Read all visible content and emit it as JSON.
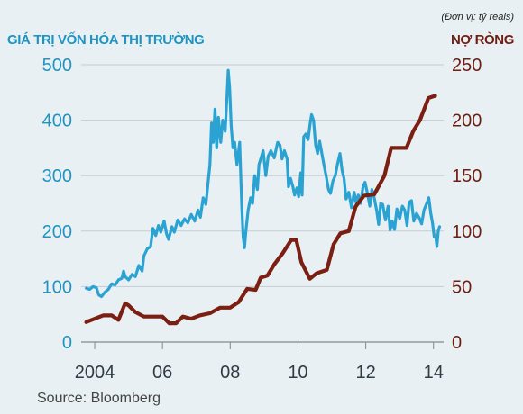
{
  "header": {
    "unit_note": "(Đơn vị: tỷ reais)",
    "left_title": "GIÁ TRỊ VỐN HÓA THỊ TRƯỜNG",
    "right_title": "NỢ RÒNG"
  },
  "source": "Source: Bloomberg",
  "colors": {
    "market_cap": "#2aa3d3",
    "net_debt": "#7b1f12",
    "left_axis_text": "#1f93c1",
    "right_axis_text": "#6e1e12",
    "axis_text": "#2f3b45",
    "grid": "#c4cdd2",
    "background": "#e9f0f3"
  },
  "chart_data": {
    "type": "line",
    "grid": true,
    "x_range": [
      2003.6,
      2014.3
    ],
    "x_ticks": [
      {
        "value": 2004,
        "label": "2004"
      },
      {
        "value": 2006,
        "label": "06"
      },
      {
        "value": 2008,
        "label": "08"
      },
      {
        "value": 2010,
        "label": "10"
      },
      {
        "value": 2012,
        "label": "12"
      },
      {
        "value": 2014,
        "label": "14"
      }
    ],
    "y_left": {
      "range": [
        0,
        500
      ],
      "ticks": [
        0,
        100,
        200,
        300,
        400,
        500
      ]
    },
    "y_right": {
      "range": [
        0,
        250
      ],
      "ticks": [
        0,
        50,
        100,
        150,
        200,
        250
      ]
    },
    "series": [
      {
        "name": "GIÁ TRỊ VỐN HÓA THỊ TRƯỜNG",
        "axis": "left",
        "points": [
          [
            2003.75,
            97
          ],
          [
            2003.85,
            95
          ],
          [
            2003.95,
            100
          ],
          [
            2004.05,
            98
          ],
          [
            2004.12,
            85
          ],
          [
            2004.2,
            82
          ],
          [
            2004.3,
            90
          ],
          [
            2004.4,
            95
          ],
          [
            2004.5,
            105
          ],
          [
            2004.6,
            103
          ],
          [
            2004.7,
            112
          ],
          [
            2004.8,
            115
          ],
          [
            2004.85,
            128
          ],
          [
            2004.9,
            118
          ],
          [
            2005.0,
            112
          ],
          [
            2005.1,
            122
          ],
          [
            2005.2,
            118
          ],
          [
            2005.3,
            138
          ],
          [
            2005.4,
            128
          ],
          [
            2005.45,
            155
          ],
          [
            2005.55,
            168
          ],
          [
            2005.65,
            172
          ],
          [
            2005.72,
            205
          ],
          [
            2005.8,
            192
          ],
          [
            2005.88,
            210
          ],
          [
            2005.95,
            198
          ],
          [
            2006.05,
            218
          ],
          [
            2006.12,
            195
          ],
          [
            2006.18,
            185
          ],
          [
            2006.28,
            208
          ],
          [
            2006.35,
            198
          ],
          [
            2006.45,
            220
          ],
          [
            2006.55,
            210
          ],
          [
            2006.65,
            222
          ],
          [
            2006.75,
            215
          ],
          [
            2006.85,
            230
          ],
          [
            2006.95,
            218
          ],
          [
            2007.05,
            238
          ],
          [
            2007.12,
            225
          ],
          [
            2007.2,
            260
          ],
          [
            2007.28,
            248
          ],
          [
            2007.35,
            290
          ],
          [
            2007.4,
            320
          ],
          [
            2007.45,
            395
          ],
          [
            2007.5,
            360
          ],
          [
            2007.55,
            420
          ],
          [
            2007.6,
            350
          ],
          [
            2007.65,
            405
          ],
          [
            2007.72,
            360
          ],
          [
            2007.78,
            400
          ],
          [
            2007.85,
            380
          ],
          [
            2007.9,
            440
          ],
          [
            2007.94,
            490
          ],
          [
            2007.98,
            460
          ],
          [
            2008.03,
            390
          ],
          [
            2008.08,
            350
          ],
          [
            2008.13,
            360
          ],
          [
            2008.2,
            320
          ],
          [
            2008.28,
            360
          ],
          [
            2008.34,
            245
          ],
          [
            2008.38,
            190
          ],
          [
            2008.42,
            170
          ],
          [
            2008.47,
            205
          ],
          [
            2008.53,
            238
          ],
          [
            2008.6,
            260
          ],
          [
            2008.66,
            250
          ],
          [
            2008.72,
            300
          ],
          [
            2008.8,
            275
          ],
          [
            2008.85,
            320
          ],
          [
            2008.9,
            330
          ],
          [
            2008.97,
            345
          ],
          [
            2009.05,
            300
          ],
          [
            2009.12,
            335
          ],
          [
            2009.2,
            345
          ],
          [
            2009.3,
            332
          ],
          [
            2009.4,
            360
          ],
          [
            2009.47,
            355
          ],
          [
            2009.53,
            330
          ],
          [
            2009.6,
            345
          ],
          [
            2009.68,
            330
          ],
          [
            2009.72,
            280
          ],
          [
            2009.78,
            295
          ],
          [
            2009.85,
            280
          ],
          [
            2009.9,
            265
          ],
          [
            2009.97,
            278
          ],
          [
            2010.02,
            262
          ],
          [
            2010.08,
            305
          ],
          [
            2010.12,
            265
          ],
          [
            2010.17,
            370
          ],
          [
            2010.23,
            375
          ],
          [
            2010.3,
            365
          ],
          [
            2010.36,
            395
          ],
          [
            2010.4,
            410
          ],
          [
            2010.46,
            400
          ],
          [
            2010.52,
            355
          ],
          [
            2010.58,
            340
          ],
          [
            2010.64,
            362
          ],
          [
            2010.7,
            342
          ],
          [
            2010.77,
            318
          ],
          [
            2010.83,
            300
          ],
          [
            2010.9,
            275
          ],
          [
            2010.96,
            268
          ],
          [
            2011.03,
            290
          ],
          [
            2011.1,
            300
          ],
          [
            2011.17,
            322
          ],
          [
            2011.24,
            340
          ],
          [
            2011.3,
            310
          ],
          [
            2011.36,
            295
          ],
          [
            2011.42,
            258
          ],
          [
            2011.5,
            270
          ],
          [
            2011.58,
            242
          ],
          [
            2011.66,
            270
          ],
          [
            2011.72,
            250
          ],
          [
            2011.78,
            265
          ],
          [
            2011.85,
            250
          ],
          [
            2011.92,
            280
          ],
          [
            2011.98,
            288
          ],
          [
            2012.05,
            268
          ],
          [
            2012.12,
            245
          ],
          [
            2012.18,
            275
          ],
          [
            2012.25,
            260
          ],
          [
            2012.32,
            238
          ],
          [
            2012.38,
            212
          ],
          [
            2012.44,
            250
          ],
          [
            2012.5,
            248
          ],
          [
            2012.58,
            220
          ],
          [
            2012.66,
            245
          ],
          [
            2012.72,
            202
          ],
          [
            2012.78,
            218
          ],
          [
            2012.85,
            203
          ],
          [
            2012.92,
            240
          ],
          [
            2013.0,
            222
          ],
          [
            2013.08,
            245
          ],
          [
            2013.15,
            238
          ],
          [
            2013.22,
            210
          ],
          [
            2013.28,
            252
          ],
          [
            2013.35,
            255
          ],
          [
            2013.42,
            218
          ],
          [
            2013.5,
            232
          ],
          [
            2013.58,
            224
          ],
          [
            2013.65,
            213
          ],
          [
            2013.72,
            238
          ],
          [
            2013.8,
            250
          ],
          [
            2013.86,
            260
          ],
          [
            2013.92,
            232
          ],
          [
            2013.97,
            215
          ],
          [
            2014.02,
            190
          ],
          [
            2014.07,
            188
          ],
          [
            2014.1,
            172
          ],
          [
            2014.14,
            200
          ],
          [
            2014.18,
            208
          ]
        ]
      },
      {
        "name": "NỢ RÒNG",
        "axis": "right",
        "points": [
          [
            2003.75,
            18
          ],
          [
            2004.0,
            21
          ],
          [
            2004.25,
            24
          ],
          [
            2004.5,
            24
          ],
          [
            2004.7,
            20
          ],
          [
            2004.9,
            35
          ],
          [
            2005.0,
            33
          ],
          [
            2005.2,
            27
          ],
          [
            2005.45,
            23
          ],
          [
            2005.7,
            23
          ],
          [
            2006.0,
            23
          ],
          [
            2006.2,
            17
          ],
          [
            2006.4,
            17
          ],
          [
            2006.6,
            23
          ],
          [
            2006.85,
            21
          ],
          [
            2007.1,
            24
          ],
          [
            2007.4,
            26
          ],
          [
            2007.7,
            31
          ],
          [
            2008.0,
            31
          ],
          [
            2008.25,
            36
          ],
          [
            2008.5,
            48
          ],
          [
            2008.75,
            47
          ],
          [
            2008.9,
            58
          ],
          [
            2009.1,
            60
          ],
          [
            2009.3,
            70
          ],
          [
            2009.55,
            80
          ],
          [
            2009.8,
            92
          ],
          [
            2009.95,
            92
          ],
          [
            2010.1,
            72
          ],
          [
            2010.35,
            57
          ],
          [
            2010.55,
            62
          ],
          [
            2010.85,
            65
          ],
          [
            2011.05,
            88
          ],
          [
            2011.25,
            98
          ],
          [
            2011.5,
            100
          ],
          [
            2011.7,
            122
          ],
          [
            2011.95,
            132
          ],
          [
            2012.25,
            133
          ],
          [
            2012.55,
            150
          ],
          [
            2012.75,
            175
          ],
          [
            2013.0,
            175
          ],
          [
            2013.2,
            175
          ],
          [
            2013.4,
            190
          ],
          [
            2013.6,
            200
          ],
          [
            2013.85,
            220
          ],
          [
            2014.05,
            222
          ]
        ]
      }
    ]
  }
}
